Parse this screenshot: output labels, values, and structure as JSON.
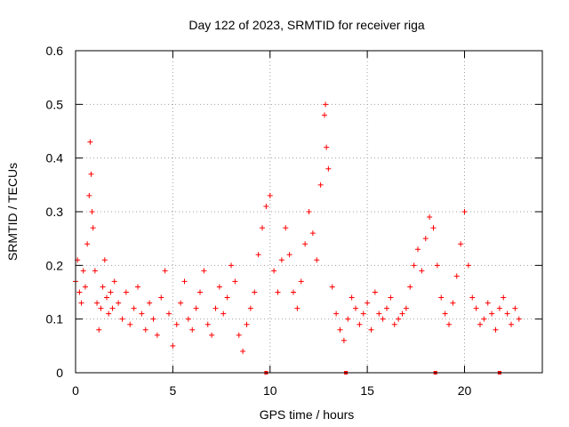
{
  "chart_data": {
    "type": "scatter",
    "title": "Day 122 of 2023, SRMTID for receiver riga",
    "xlabel": "GPS time / hours",
    "ylabel": "SRMTID / TECUs",
    "xlim": [
      0,
      24
    ],
    "ylim": [
      0,
      0.6
    ],
    "x_ticks": [
      0,
      5,
      10,
      15,
      20
    ],
    "x_tick_labels": [
      "0",
      "5",
      "10",
      "15",
      "20"
    ],
    "y_ticks": [
      0,
      0.1,
      0.2,
      0.3,
      0.4,
      0.5,
      0.6
    ],
    "y_tick_labels": [
      "0",
      "0.1",
      "0.2",
      "0.3",
      "0.4",
      "0.5",
      "0.6"
    ],
    "grid": true,
    "marker": "+",
    "colors": {
      "series": "#ff0000",
      "grid": "#a0a0a0",
      "axis": "#000000"
    },
    "series": [
      {
        "name": "SRMTID",
        "x": [
          0.0,
          0.1,
          0.2,
          0.3,
          0.4,
          0.5,
          0.6,
          0.7,
          0.75,
          0.8,
          0.85,
          0.9,
          1.0,
          1.1,
          1.2,
          1.3,
          1.4,
          1.5,
          1.6,
          1.7,
          1.8,
          1.9,
          2.0,
          2.2,
          2.4,
          2.6,
          2.8,
          3.0,
          3.2,
          3.4,
          3.6,
          3.8,
          4.0,
          4.2,
          4.4,
          4.6,
          4.8,
          5.0,
          5.2,
          5.4,
          5.6,
          5.8,
          6.0,
          6.2,
          6.4,
          6.6,
          6.8,
          7.0,
          7.2,
          7.4,
          7.6,
          7.8,
          8.0,
          8.2,
          8.4,
          8.6,
          8.8,
          9.0,
          9.2,
          9.4,
          9.6,
          9.8,
          10.0,
          10.2,
          10.4,
          10.6,
          10.8,
          11.0,
          11.2,
          11.4,
          11.6,
          11.8,
          12.0,
          12.2,
          12.4,
          12.6,
          12.8,
          12.85,
          12.9,
          13.0,
          13.2,
          13.4,
          13.6,
          13.8,
          14.0,
          14.2,
          14.4,
          14.6,
          14.8,
          15.0,
          15.2,
          15.4,
          15.6,
          15.8,
          16.0,
          16.2,
          16.4,
          16.6,
          16.8,
          17.0,
          17.2,
          17.4,
          17.6,
          17.8,
          18.0,
          18.2,
          18.4,
          18.6,
          18.8,
          19.0,
          19.2,
          19.4,
          19.6,
          19.8,
          20.0,
          20.2,
          20.4,
          20.6,
          20.8,
          21.0,
          21.2,
          21.4,
          21.6,
          21.8,
          22.0,
          22.2,
          22.4,
          22.6,
          22.8
        ],
        "y": [
          0.17,
          0.21,
          0.15,
          0.13,
          0.19,
          0.16,
          0.24,
          0.33,
          0.43,
          0.37,
          0.3,
          0.27,
          0.19,
          0.13,
          0.08,
          0.12,
          0.16,
          0.21,
          0.14,
          0.11,
          0.15,
          0.12,
          0.17,
          0.13,
          0.1,
          0.15,
          0.09,
          0.12,
          0.16,
          0.11,
          0.08,
          0.13,
          0.1,
          0.07,
          0.14,
          0.19,
          0.11,
          0.05,
          0.09,
          0.13,
          0.17,
          0.1,
          0.08,
          0.12,
          0.15,
          0.19,
          0.09,
          0.07,
          0.12,
          0.16,
          0.11,
          0.14,
          0.2,
          0.17,
          0.07,
          0.04,
          0.09,
          0.12,
          0.15,
          0.22,
          0.27,
          0.31,
          0.33,
          0.19,
          0.15,
          0.21,
          0.27,
          0.22,
          0.15,
          0.12,
          0.17,
          0.24,
          0.3,
          0.26,
          0.21,
          0.35,
          0.48,
          0.5,
          0.42,
          0.38,
          0.16,
          0.11,
          0.08,
          0.06,
          0.1,
          0.14,
          0.12,
          0.09,
          0.11,
          0.13,
          0.08,
          0.15,
          0.11,
          0.1,
          0.12,
          0.14,
          0.09,
          0.1,
          0.11,
          0.12,
          0.16,
          0.2,
          0.23,
          0.19,
          0.25,
          0.29,
          0.27,
          0.2,
          0.14,
          0.11,
          0.09,
          0.13,
          0.18,
          0.24,
          0.3,
          0.2,
          0.14,
          0.12,
          0.09,
          0.1,
          0.13,
          0.11,
          0.08,
          0.12,
          0.14,
          0.11,
          0.09,
          0.12,
          0.1
        ]
      }
    ],
    "axis_markers_x": [
      9.8,
      13.9,
      18.5,
      21.8
    ]
  }
}
